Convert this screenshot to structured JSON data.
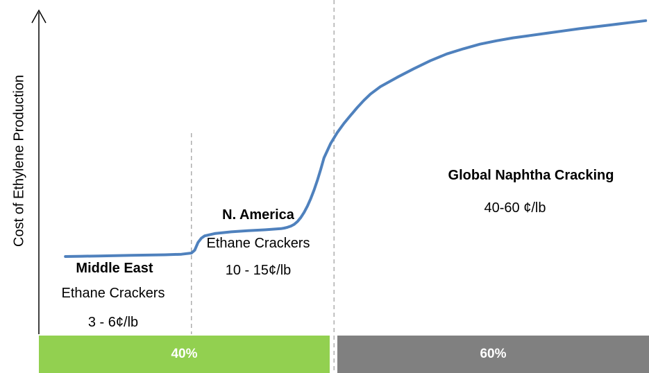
{
  "chart_data": {
    "type": "line",
    "title": "",
    "ylabel": "Cost of Ethylene Production",
    "xlabel": "",
    "grid": false,
    "series": [
      {
        "color": "#4f81bd",
        "x": [
          0,
          5,
          10,
          15,
          20,
          25,
          30,
          35,
          38,
          39,
          40,
          41,
          42,
          45,
          50,
          55,
          60,
          65,
          66,
          67,
          68,
          69,
          70,
          71,
          72,
          73,
          74,
          75,
          76,
          77,
          78,
          80,
          82,
          84,
          86,
          88,
          90,
          92,
          95,
          100,
          105,
          110,
          115,
          120,
          125,
          130,
          135,
          140,
          145,
          150,
          155,
          160,
          165,
          170,
          175
        ],
        "y": [
          0.6,
          0.7,
          0.8,
          0.9,
          1.0,
          1.1,
          1.2,
          1.4,
          1.8,
          2.8,
          5.5,
          7.0,
          7.8,
          8.6,
          9.2,
          9.6,
          9.9,
          10.3,
          10.5,
          10.8,
          11.2,
          11.8,
          12.8,
          14.2,
          16.0,
          18.2,
          20.8,
          23.8,
          27.2,
          31.0,
          35.0,
          40.0,
          43.8,
          47.0,
          49.8,
          52.5,
          55.0,
          57.2,
          59.8,
          63.0,
          66.0,
          68.8,
          71.2,
          73.0,
          74.6,
          75.8,
          76.8,
          77.6,
          78.4,
          79.2,
          80.0,
          80.7,
          81.4,
          82.1,
          82.8
        ]
      }
    ],
    "xlim": [
      -8,
      176
    ],
    "ylim": [
      -40,
      90
    ],
    "dividers": [
      38,
      81
    ],
    "regions": [
      {
        "name": "Middle East",
        "desc": "Ethane Crackers",
        "cost": "3 - 6¢/lb"
      },
      {
        "name": "N. America",
        "desc": "Ethane Crackers",
        "cost": "10 - 15¢/lb"
      },
      {
        "name": "Global Naphtha Cracking",
        "cost": "40-60 ¢/lb"
      }
    ],
    "shares": [
      {
        "label": "40%",
        "value": 40,
        "color": "#92d050"
      },
      {
        "label": "60%",
        "value": 60,
        "color": "#808080"
      }
    ]
  }
}
